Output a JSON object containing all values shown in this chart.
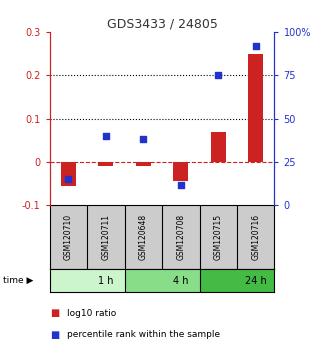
{
  "title": "GDS3433 / 24805",
  "samples": [
    "GSM120710",
    "GSM120711",
    "GSM120648",
    "GSM120708",
    "GSM120715",
    "GSM120716"
  ],
  "log10_ratio": [
    -0.055,
    -0.01,
    -0.01,
    -0.045,
    0.07,
    0.25
  ],
  "percentile_rank": [
    15,
    40,
    38,
    12,
    75,
    92
  ],
  "ylim_left": [
    -0.1,
    0.3
  ],
  "ylim_right": [
    0,
    100
  ],
  "yticks_left": [
    -0.1,
    0.0,
    0.1,
    0.2,
    0.3
  ],
  "yticks_right": [
    0,
    25,
    50,
    75,
    100
  ],
  "ytick_labels_left": [
    "-0.1",
    "0",
    "0.1",
    "0.2",
    "0.3"
  ],
  "ytick_labels_right": [
    "0",
    "25",
    "50",
    "75",
    "100%"
  ],
  "hlines": [
    0.1,
    0.2
  ],
  "dashed_zero": 0.0,
  "bar_color": "#cc2222",
  "square_color": "#2233cc",
  "bar_width": 0.4,
  "time_groups": [
    {
      "label": "1 h",
      "start": 0,
      "end": 2,
      "color": "#ccf5cc"
    },
    {
      "label": "4 h",
      "start": 2,
      "end": 4,
      "color": "#88dd88"
    },
    {
      "label": "24 h",
      "start": 4,
      "end": 6,
      "color": "#44bb44"
    }
  ],
  "sample_box_color": "#cccccc",
  "legend_labels": [
    "log10 ratio",
    "percentile rank within the sample"
  ],
  "title_color": "#333333"
}
